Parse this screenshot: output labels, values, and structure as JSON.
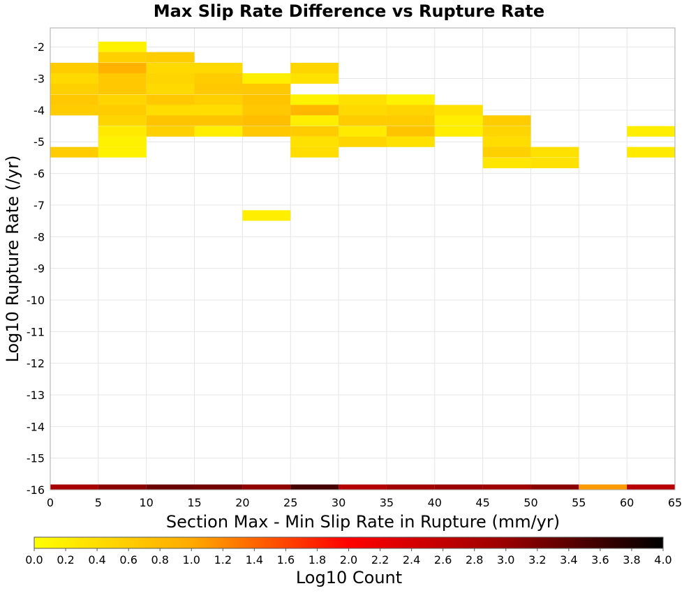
{
  "chart_data": {
    "type": "heatmap",
    "title": "Max Slip Rate Difference vs Rupture Rate",
    "xlabel": "Section Max - Min Slip Rate in Rupture (mm/yr)",
    "ylabel": "Log10 Rupture Rate (/yr)",
    "xlim": [
      0,
      65
    ],
    "ylim": [
      -16,
      -1.4
    ],
    "x_bin_width": 5,
    "y_bin_height": 0.333,
    "x_ticks": [
      "0",
      "5",
      "10",
      "15",
      "20",
      "25",
      "30",
      "35",
      "40",
      "45",
      "50",
      "55",
      "60",
      "65"
    ],
    "y_ticks": [
      "-2",
      "-3",
      "-4",
      "-5",
      "-6",
      "-7",
      "-8",
      "-9",
      "-10",
      "-11",
      "-12",
      "-13",
      "-14",
      "-15",
      "-16"
    ],
    "grid": true,
    "colorbar": {
      "label": "Log10 Count",
      "range": [
        0.0,
        4.0
      ],
      "ticks": [
        "0.0",
        "0.2",
        "0.4",
        "0.6",
        "0.8",
        "1.0",
        "1.2",
        "1.4",
        "1.6",
        "1.8",
        "2.0",
        "2.2",
        "2.4",
        "2.6",
        "2.8",
        "3.0",
        "3.2",
        "3.4",
        "3.6",
        "3.8",
        "4.0"
      ],
      "stops": [
        "#ffff00",
        "#ffaa00",
        "#ff0000",
        "#990000",
        "#000000"
      ]
    },
    "cells": [
      {
        "x": 0,
        "y": -2.67,
        "v": 0.6
      },
      {
        "x": 0,
        "y": -3.0,
        "v": 0.45
      },
      {
        "x": 0,
        "y": -3.33,
        "v": 0.55
      },
      {
        "x": 0,
        "y": -3.67,
        "v": 0.65
      },
      {
        "x": 0,
        "y": -4.0,
        "v": 0.6
      },
      {
        "x": 0,
        "y": -5.33,
        "v": 0.6
      },
      {
        "x": 5,
        "y": -2.0,
        "v": 0.15
      },
      {
        "x": 5,
        "y": -2.33,
        "v": 0.55
      },
      {
        "x": 5,
        "y": -2.67,
        "v": 0.9
      },
      {
        "x": 5,
        "y": -3.0,
        "v": 0.65
      },
      {
        "x": 5,
        "y": -3.33,
        "v": 0.65
      },
      {
        "x": 5,
        "y": -3.67,
        "v": 0.5
      },
      {
        "x": 5,
        "y": -4.0,
        "v": 0.6
      },
      {
        "x": 5,
        "y": -4.33,
        "v": 0.5
      },
      {
        "x": 5,
        "y": -4.67,
        "v": 0.25
      },
      {
        "x": 5,
        "y": -5.0,
        "v": 0.15
      },
      {
        "x": 5,
        "y": -5.33,
        "v": 0.15
      },
      {
        "x": 10,
        "y": -2.33,
        "v": 0.6
      },
      {
        "x": 10,
        "y": -2.67,
        "v": 0.45
      },
      {
        "x": 10,
        "y": -3.0,
        "v": 0.5
      },
      {
        "x": 10,
        "y": -3.33,
        "v": 0.45
      },
      {
        "x": 10,
        "y": -3.67,
        "v": 0.65
      },
      {
        "x": 10,
        "y": -4.0,
        "v": 0.4
      },
      {
        "x": 10,
        "y": -4.33,
        "v": 0.7
      },
      {
        "x": 10,
        "y": -4.67,
        "v": 0.55
      },
      {
        "x": 15,
        "y": -2.67,
        "v": 0.45
      },
      {
        "x": 15,
        "y": -3.0,
        "v": 0.6
      },
      {
        "x": 15,
        "y": -3.33,
        "v": 0.65
      },
      {
        "x": 15,
        "y": -3.67,
        "v": 0.55
      },
      {
        "x": 15,
        "y": -4.0,
        "v": 0.4
      },
      {
        "x": 15,
        "y": -4.33,
        "v": 0.7
      },
      {
        "x": 15,
        "y": -4.67,
        "v": 0.2
      },
      {
        "x": 20,
        "y": -3.0,
        "v": 0.2
      },
      {
        "x": 20,
        "y": -3.33,
        "v": 0.65
      },
      {
        "x": 20,
        "y": -3.67,
        "v": 0.7
      },
      {
        "x": 20,
        "y": -4.0,
        "v": 0.65
      },
      {
        "x": 20,
        "y": -4.33,
        "v": 0.75
      },
      {
        "x": 20,
        "y": -4.67,
        "v": 0.65
      },
      {
        "x": 20,
        "y": -7.33,
        "v": 0.2
      },
      {
        "x": 25,
        "y": -2.67,
        "v": 0.5
      },
      {
        "x": 25,
        "y": -3.0,
        "v": 0.35
      },
      {
        "x": 25,
        "y": -3.67,
        "v": 0.15
      },
      {
        "x": 25,
        "y": -4.0,
        "v": 0.85
      },
      {
        "x": 25,
        "y": -4.33,
        "v": 0.2
      },
      {
        "x": 25,
        "y": -4.67,
        "v": 0.6
      },
      {
        "x": 25,
        "y": -5.0,
        "v": 0.35
      },
      {
        "x": 25,
        "y": -5.33,
        "v": 0.4
      },
      {
        "x": 30,
        "y": -3.67,
        "v": 0.35
      },
      {
        "x": 30,
        "y": -4.0,
        "v": 0.45
      },
      {
        "x": 30,
        "y": -4.33,
        "v": 0.6
      },
      {
        "x": 30,
        "y": -4.67,
        "v": 0.25
      },
      {
        "x": 30,
        "y": -5.0,
        "v": 0.5
      },
      {
        "x": 35,
        "y": -3.67,
        "v": 0.15
      },
      {
        "x": 35,
        "y": -4.0,
        "v": 0.5
      },
      {
        "x": 35,
        "y": -4.33,
        "v": 0.6
      },
      {
        "x": 35,
        "y": -4.67,
        "v": 0.7
      },
      {
        "x": 35,
        "y": -5.0,
        "v": 0.35
      },
      {
        "x": 40,
        "y": -4.0,
        "v": 0.35
      },
      {
        "x": 40,
        "y": -4.33,
        "v": 0.2
      },
      {
        "x": 40,
        "y": -4.67,
        "v": 0.2
      },
      {
        "x": 45,
        "y": -4.33,
        "v": 0.6
      },
      {
        "x": 45,
        "y": -4.67,
        "v": 0.5
      },
      {
        "x": 45,
        "y": -5.0,
        "v": 0.4
      },
      {
        "x": 45,
        "y": -5.33,
        "v": 0.55
      },
      {
        "x": 45,
        "y": -5.67,
        "v": 0.3
      },
      {
        "x": 50,
        "y": -5.33,
        "v": 0.35
      },
      {
        "x": 50,
        "y": -5.67,
        "v": 0.35
      },
      {
        "x": 60,
        "y": -4.67,
        "v": 0.2
      },
      {
        "x": 60,
        "y": -5.33,
        "v": 0.25
      },
      {
        "x": 0,
        "y": -16.0,
        "v": 2.85
      },
      {
        "x": 5,
        "y": -16.0,
        "v": 3.1
      },
      {
        "x": 10,
        "y": -16.0,
        "v": 3.3
      },
      {
        "x": 15,
        "y": -16.0,
        "v": 3.25
      },
      {
        "x": 20,
        "y": -16.0,
        "v": 3.05
      },
      {
        "x": 25,
        "y": -16.0,
        "v": 3.55
      },
      {
        "x": 30,
        "y": -16.0,
        "v": 2.75
      },
      {
        "x": 35,
        "y": -16.0,
        "v": 2.9
      },
      {
        "x": 40,
        "y": -16.0,
        "v": 3.0
      },
      {
        "x": 45,
        "y": -16.0,
        "v": 2.95
      },
      {
        "x": 50,
        "y": -16.0,
        "v": 3.1
      },
      {
        "x": 55,
        "y": -16.0,
        "v": 1.1
      },
      {
        "x": 60,
        "y": -16.0,
        "v": 2.7
      }
    ]
  }
}
